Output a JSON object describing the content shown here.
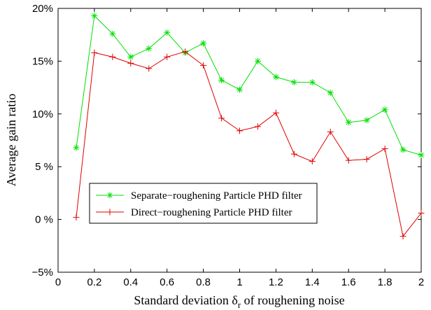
{
  "chart_data": {
    "type": "line",
    "xlabel_main": "Standard deviation δ",
    "xlabel_sub": "r",
    "xlabel_rest": " of roughening noise",
    "ylabel": "Average gain ratio",
    "xlim": [
      0,
      2
    ],
    "ylim": [
      -5,
      20
    ],
    "xticks": [
      0,
      0.2,
      0.4,
      0.6,
      0.8,
      1,
      1.2,
      1.4,
      1.6,
      1.8,
      2
    ],
    "xtick_labels": [
      "0",
      "0.2",
      "0.4",
      "0.6",
      "0.8",
      "1",
      "1.2",
      "1.4",
      "1.6",
      "1.8",
      "2"
    ],
    "yticks": [
      -5,
      0,
      5,
      10,
      15,
      20
    ],
    "ytick_labels": [
      "−5%",
      "0 %",
      "5 %",
      "10%",
      "15%",
      "20%"
    ],
    "grid": false,
    "legend_position": "lower-left",
    "x": [
      0.1,
      0.2,
      0.3,
      0.4,
      0.5,
      0.6,
      0.7,
      0.8,
      0.9,
      1.0,
      1.1,
      1.2,
      1.3,
      1.4,
      1.5,
      1.6,
      1.7,
      1.8,
      1.9,
      2.0
    ],
    "series": [
      {
        "name": "Separate−roughening Particle PHD filter",
        "color": "#00e000",
        "marker": "asterisk",
        "values": [
          6.8,
          19.3,
          17.6,
          15.4,
          16.2,
          17.7,
          15.8,
          16.7,
          13.2,
          12.3,
          15.0,
          13.5,
          13.0,
          13.0,
          12.0,
          9.2,
          9.4,
          10.4,
          6.6,
          6.1
        ]
      },
      {
        "name": "Direct−roughening Particle PHD filter",
        "color": "#e00000",
        "marker": "plus",
        "values": [
          0.2,
          15.8,
          15.4,
          14.8,
          14.3,
          15.4,
          15.9,
          14.6,
          9.6,
          8.4,
          8.8,
          10.1,
          6.2,
          5.5,
          8.3,
          5.6,
          5.7,
          6.7,
          -1.6,
          0.6
        ]
      }
    ]
  }
}
